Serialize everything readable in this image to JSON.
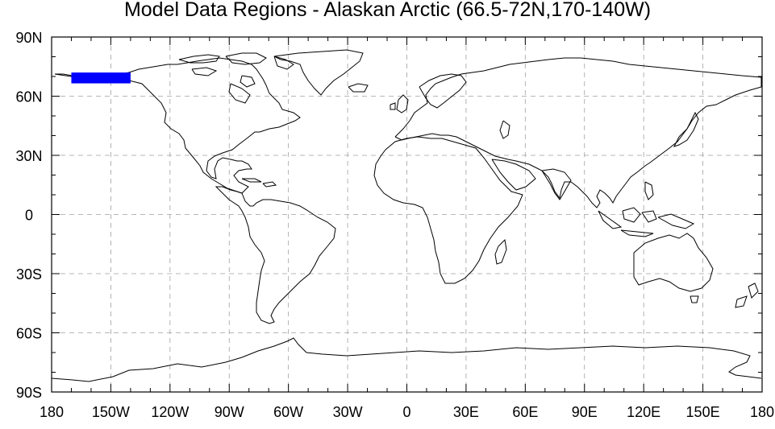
{
  "title": "Model Data Regions - Alaskan Arctic (66.5-72N,170-140W)",
  "map": {
    "projection": "cylindrical-equidistant",
    "lon_range": [
      -180,
      180
    ],
    "lat_range": [
      -90,
      90
    ],
    "grid": true,
    "x_ticks": [
      {
        "lon": -180,
        "label": "180"
      },
      {
        "lon": -150,
        "label": "150W"
      },
      {
        "lon": -120,
        "label": "120W"
      },
      {
        "lon": -90,
        "label": "90W"
      },
      {
        "lon": -60,
        "label": "60W"
      },
      {
        "lon": -30,
        "label": "30W"
      },
      {
        "lon": 0,
        "label": "0"
      },
      {
        "lon": 30,
        "label": "30E"
      },
      {
        "lon": 60,
        "label": "60E"
      },
      {
        "lon": 90,
        "label": "90E"
      },
      {
        "lon": 120,
        "label": "120E"
      },
      {
        "lon": 150,
        "label": "150E"
      },
      {
        "lon": 180,
        "label": "180"
      }
    ],
    "y_ticks": [
      {
        "lat": 90,
        "label": "90N"
      },
      {
        "lat": 60,
        "label": "60N"
      },
      {
        "lat": 30,
        "label": "30N"
      },
      {
        "lat": 0,
        "label": "0"
      },
      {
        "lat": -30,
        "label": "30S"
      },
      {
        "lat": -60,
        "label": "60S"
      },
      {
        "lat": -90,
        "label": "90S"
      }
    ],
    "region": {
      "lat_min": 66.5,
      "lat_max": 72,
      "lon_min": -170,
      "lon_max": -140,
      "color": "#0000ff"
    },
    "coastline_color": "#000000",
    "grid_color": "#a0a0a0"
  }
}
